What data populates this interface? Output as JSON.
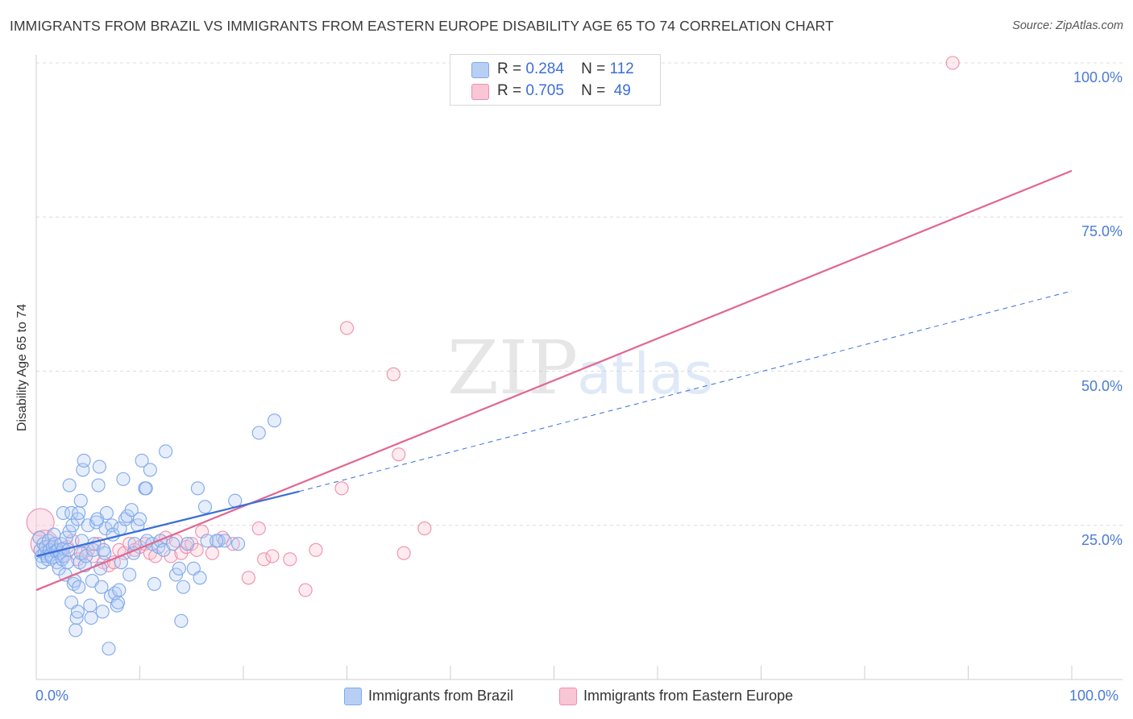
{
  "title": "IMMIGRANTS FROM BRAZIL VS IMMIGRANTS FROM EASTERN EUROPE DISABILITY AGE 65 TO 74 CORRELATION CHART",
  "source": "Source: ZipAtlas.com",
  "watermark": {
    "zip": "ZIP",
    "atlas": "atlas"
  },
  "legend": {
    "r_label": "R =",
    "n_label": "N =",
    "series": [
      {
        "name": "Immigrants from Brazil",
        "r": "0.284",
        "n": "112",
        "color": "#7fa8ea",
        "fill": "#b8cff5"
      },
      {
        "name": "Immigrants from Eastern Europe",
        "r": "0.705",
        "n": "49",
        "color": "#ee8fab",
        "fill": "#f8c6d4"
      }
    ]
  },
  "colors": {
    "blue_line": "#3a6fd8",
    "pink_line": "#e2668f",
    "grid": "#dcdcdc",
    "axis_text": "#4a7bd6"
  },
  "chart_data": {
    "type": "scatter",
    "title": "IMMIGRANTS FROM BRAZIL VS IMMIGRANTS FROM EASTERN EUROPE DISABILITY AGE 65 TO 74 CORRELATION CHART",
    "xlabel": "",
    "ylabel": "Disability Age 65 to 74",
    "xlim": [
      0,
      100
    ],
    "ylim": [
      0,
      100
    ],
    "x_tick_labels": [
      "0.0%",
      "100.0%"
    ],
    "y_ticks": [
      25,
      50,
      75,
      100
    ],
    "y_tick_labels": [
      "25.0%",
      "50.0%",
      "75.0%",
      "100.0%"
    ],
    "grid": true,
    "series": [
      {
        "name": "Immigrants from Brazil",
        "r": 0.284,
        "n": 112,
        "trend": {
          "x0": 0,
          "y0": 20.0,
          "x1": 25.4,
          "y1": 30.5,
          "dashed_to_x": 100,
          "dashed_to_y": 63.0
        },
        "points": [
          [
            0.3,
            23.0
          ],
          [
            0.4,
            21.0
          ],
          [
            0.5,
            20.0
          ],
          [
            0.6,
            19.0
          ],
          [
            0.7,
            22.0
          ],
          [
            0.8,
            20.5
          ],
          [
            0.9,
            21.5
          ],
          [
            1.0,
            20.0
          ],
          [
            1.1,
            19.5
          ],
          [
            1.2,
            22.5
          ],
          [
            1.3,
            21.0
          ],
          [
            1.4,
            20.2
          ],
          [
            1.5,
            19.8
          ],
          [
            1.6,
            21.5
          ],
          [
            1.7,
            23.5
          ],
          [
            1.8,
            22.0
          ],
          [
            1.9,
            20.8
          ],
          [
            2.0,
            19.0
          ],
          [
            2.1,
            21.0
          ],
          [
            2.2,
            18.0
          ],
          [
            2.3,
            20.5
          ],
          [
            2.4,
            22.0
          ],
          [
            2.5,
            19.5
          ],
          [
            2.6,
            21.2
          ],
          [
            2.7,
            20.0
          ],
          [
            2.8,
            17.0
          ],
          [
            2.9,
            23.0
          ],
          [
            3.0,
            19.0
          ],
          [
            3.1,
            21.0
          ],
          [
            3.2,
            24.0
          ],
          [
            2.6,
            27.0
          ],
          [
            3.4,
            27.0
          ],
          [
            3.2,
            31.5
          ],
          [
            3.5,
            25.0
          ],
          [
            3.4,
            12.5
          ],
          [
            3.6,
            15.5
          ],
          [
            3.7,
            16.0
          ],
          [
            3.8,
            8.0
          ],
          [
            3.9,
            10.0
          ],
          [
            4.0,
            11.0
          ],
          [
            4.1,
            15.0
          ],
          [
            4.2,
            19.0
          ],
          [
            4.3,
            20.5
          ],
          [
            4.4,
            22.5
          ],
          [
            4.0,
            26.0
          ],
          [
            4.1,
            27.0
          ],
          [
            4.3,
            29.0
          ],
          [
            4.5,
            34.0
          ],
          [
            4.6,
            35.5
          ],
          [
            4.7,
            18.5
          ],
          [
            4.8,
            20.0
          ],
          [
            5.0,
            25.0
          ],
          [
            5.2,
            12.0
          ],
          [
            5.3,
            10.0
          ],
          [
            5.4,
            16.0
          ],
          [
            5.5,
            21.0
          ],
          [
            5.6,
            22.0
          ],
          [
            5.8,
            25.5
          ],
          [
            5.9,
            26.0
          ],
          [
            6.0,
            31.5
          ],
          [
            6.1,
            34.5
          ],
          [
            6.2,
            18.0
          ],
          [
            6.3,
            15.0
          ],
          [
            6.4,
            11.0
          ],
          [
            6.6,
            20.5
          ],
          [
            6.7,
            24.5
          ],
          [
            6.8,
            27.0
          ],
          [
            6.5,
            21.0
          ],
          [
            7.0,
            5.0
          ],
          [
            7.2,
            13.5
          ],
          [
            7.3,
            25.0
          ],
          [
            7.4,
            23.5
          ],
          [
            7.6,
            14.0
          ],
          [
            7.8,
            12.0
          ],
          [
            7.9,
            12.5
          ],
          [
            8.0,
            14.5
          ],
          [
            8.1,
            24.5
          ],
          [
            8.2,
            19.0
          ],
          [
            8.4,
            32.5
          ],
          [
            8.6,
            26.0
          ],
          [
            8.8,
            26.5
          ],
          [
            9.0,
            17.0
          ],
          [
            9.2,
            27.5
          ],
          [
            9.4,
            20.5
          ],
          [
            9.5,
            22.0
          ],
          [
            9.8,
            25.0
          ],
          [
            10.0,
            26.0
          ],
          [
            10.2,
            35.5
          ],
          [
            10.5,
            31.0
          ],
          [
            10.6,
            31.0
          ],
          [
            10.7,
            22.5
          ],
          [
            11.0,
            34.0
          ],
          [
            11.2,
            22.0
          ],
          [
            11.4,
            15.5
          ],
          [
            11.8,
            21.5
          ],
          [
            12.0,
            22.5
          ],
          [
            12.3,
            21.0
          ],
          [
            12.5,
            37.0
          ],
          [
            13.2,
            22.0
          ],
          [
            13.5,
            17.0
          ],
          [
            13.8,
            18.0
          ],
          [
            14.0,
            9.5
          ],
          [
            14.2,
            15.0
          ],
          [
            14.6,
            22.0
          ],
          [
            15.2,
            18.0
          ],
          [
            15.6,
            31.0
          ],
          [
            15.8,
            16.5
          ],
          [
            16.3,
            28.0
          ],
          [
            16.5,
            22.5
          ],
          [
            17.6,
            22.5
          ],
          [
            18.2,
            22.5
          ],
          [
            19.2,
            29.0
          ],
          [
            19.5,
            22.0
          ],
          [
            17.4,
            22.5
          ],
          [
            23.0,
            42.0
          ],
          [
            21.5,
            40.0
          ]
        ]
      },
      {
        "name": "Immigrants from Eastern Europe",
        "r": 0.705,
        "n": 49,
        "trend": {
          "x0": 0,
          "y0": 14.5,
          "x1": 100,
          "y1": 82.5
        },
        "points": [
          [
            0.4,
            25.5
          ],
          [
            0.8,
            22.0
          ],
          [
            1.2,
            21.5
          ],
          [
            2.0,
            21.0
          ],
          [
            2.5,
            20.0
          ],
          [
            3.0,
            21.5
          ],
          [
            3.5,
            22.5
          ],
          [
            4.0,
            19.5
          ],
          [
            4.5,
            20.5
          ],
          [
            5.0,
            21.0
          ],
          [
            5.5,
            20.0
          ],
          [
            6.0,
            22.0
          ],
          [
            6.5,
            19.0
          ],
          [
            7.0,
            18.5
          ],
          [
            7.5,
            19.0
          ],
          [
            8.0,
            21.0
          ],
          [
            8.5,
            20.5
          ],
          [
            9.0,
            22.0
          ],
          [
            9.5,
            21.0
          ],
          [
            10.0,
            21.5
          ],
          [
            10.5,
            22.0
          ],
          [
            11.0,
            20.5
          ],
          [
            11.5,
            20.0
          ],
          [
            12.0,
            22.5
          ],
          [
            12.5,
            23.0
          ],
          [
            13.0,
            20.0
          ],
          [
            13.5,
            22.5
          ],
          [
            14.0,
            20.5
          ],
          [
            14.5,
            21.5
          ],
          [
            15.0,
            22.0
          ],
          [
            15.5,
            21.0
          ],
          [
            16.0,
            24.0
          ],
          [
            17.0,
            20.5
          ],
          [
            18.0,
            23.0
          ],
          [
            19.0,
            22.0
          ],
          [
            20.5,
            16.5
          ],
          [
            21.5,
            24.5
          ],
          [
            22.0,
            19.5
          ],
          [
            22.8,
            20.0
          ],
          [
            24.5,
            19.5
          ],
          [
            26.0,
            14.5
          ],
          [
            27.0,
            21.0
          ],
          [
            29.5,
            31.0
          ],
          [
            30.0,
            57.0
          ],
          [
            34.5,
            49.5
          ],
          [
            35.0,
            36.5
          ],
          [
            35.5,
            20.5
          ],
          [
            37.5,
            24.5
          ],
          [
            88.5,
            100.0
          ]
        ]
      }
    ]
  }
}
